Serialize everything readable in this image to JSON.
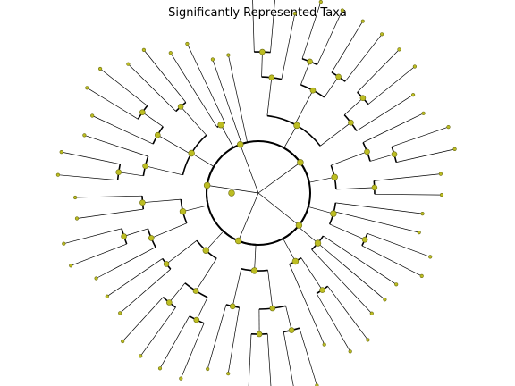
{
  "title": "Significantly Represented Taxa",
  "colors": {
    "node_fill": "#bcbd22",
    "node_stroke": "#6b6b10",
    "branch": "#000000"
  },
  "chart_data": {
    "type": "radial-tree",
    "title": "Significantly Represented Taxa",
    "root": {
      "children": [
        {
          "children": [
            {
              "children": [
                {
                  "children": [
                    {
                      "children": [
                        {
                          "leaf": true
                        },
                        {
                          "leaf": true
                        }
                      ]
                    },
                    {
                      "leaf": true
                    }
                  ]
                },
                {
                  "children": [
                    {
                      "children": [
                        {
                          "leaf": true
                        },
                        {
                          "leaf": true
                        }
                      ]
                    },
                    {
                      "children": [
                        {
                          "leaf": true
                        },
                        {
                          "leaf": true
                        }
                      ]
                    }
                  ]
                },
                {
                  "children": [
                    {
                      "children": [
                        {
                          "leaf": true
                        },
                        {
                          "leaf": true
                        }
                      ]
                    },
                    {
                      "leaf": true
                    }
                  ]
                }
              ]
            },
            {
              "children": [
                {
                  "children": [
                    {
                      "leaf": true
                    },
                    {
                      "children": [
                        {
                          "leaf": true
                        },
                        {
                          "leaf": true
                        }
                      ]
                    }
                  ]
                },
                {
                  "children": [
                    {
                      "leaf": true
                    },
                    {
                      "leaf": true
                    }
                  ]
                }
              ]
            }
          ]
        },
        {
          "children": [
            {
              "children": [
                {
                  "leaf": true
                },
                {
                  "leaf": true
                },
                {
                  "children": [
                    {
                      "leaf": true
                    },
                    {
                      "leaf": true
                    }
                  ]
                }
              ]
            },
            {
              "children": [
                {
                  "leaf": true
                },
                {
                  "leaf": true
                },
                {
                  "leaf": true
                }
              ]
            },
            {
              "children": [
                {
                  "children": [
                    {
                      "leaf": true
                    },
                    {
                      "leaf": true
                    }
                  ]
                },
                {
                  "leaf": true
                }
              ]
            }
          ]
        },
        {
          "children": [
            {
              "children": [
                {
                  "children": [
                    {
                      "children": [
                        {
                          "leaf": true
                        },
                        {
                          "leaf": true
                        }
                      ]
                    },
                    {
                      "children": [
                        {
                          "leaf": true
                        },
                        {
                          "leaf": true
                        }
                      ]
                    }
                  ]
                },
                {
                  "children": [
                    {
                      "leaf": true
                    },
                    {
                      "leaf": true
                    }
                  ]
                }
              ]
            },
            {
              "children": [
                {
                  "children": [
                    {
                      "children": [
                        {
                          "leaf": true
                        },
                        {
                          "leaf": true
                        }
                      ]
                    },
                    {
                      "children": [
                        {
                          "leaf": true
                        },
                        {
                          "leaf": true
                        }
                      ]
                    }
                  ]
                },
                {
                  "children": [
                    {
                      "leaf": true
                    },
                    {
                      "leaf": true
                    }
                  ]
                }
              ]
            }
          ]
        },
        {
          "children": [
            {
              "children": [
                {
                  "children": [
                    {
                      "leaf": true
                    },
                    {
                      "children": [
                        {
                          "leaf": true
                        },
                        {
                          "leaf": true
                        }
                      ]
                    }
                  ]
                },
                {
                  "children": [
                    {
                      "leaf": true
                    },
                    {
                      "leaf": true
                    }
                  ]
                }
              ]
            },
            {
              "children": [
                {
                  "children": [
                    {
                      "children": [
                        {
                          "leaf": true
                        },
                        {
                          "leaf": true
                        }
                      ]
                    },
                    {
                      "leaf": true
                    }
                  ]
                },
                {
                  "children": [
                    {
                      "leaf": true
                    },
                    {
                      "children": [
                        {
                          "leaf": true
                        },
                        {
                          "leaf": true
                        }
                      ]
                    }
                  ]
                },
                {
                  "children": [
                    {
                      "leaf": true
                    },
                    {
                      "leaf": true
                    }
                  ]
                }
              ]
            }
          ]
        },
        {
          "children": [
            {
              "children": [
                {
                  "leaf": true
                },
                {
                  "leaf": true
                }
              ]
            },
            {
              "leaf": true
            },
            {
              "leaf": true
            }
          ]
        }
      ]
    }
  }
}
